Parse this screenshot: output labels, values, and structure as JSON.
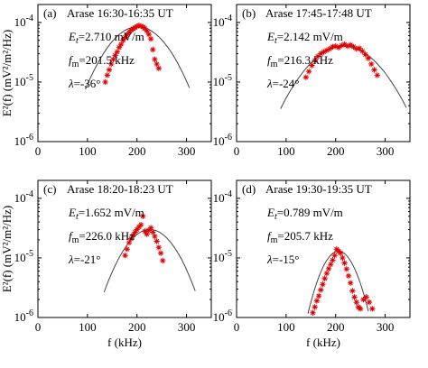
{
  "chart_data": [
    {
      "type": "scatter",
      "panel_label": "(a)",
      "title": "Arase  16:30-16:35 UT",
      "Et": "2.710 mV/m",
      "fm": "201.5 kHz",
      "lambda": "-36°",
      "xlim": [
        0,
        350
      ],
      "ylim": [
        1e-06,
        0.0002
      ],
      "yscale": "log",
      "xticks": [
        0,
        100,
        200,
        300
      ],
      "yticks": [
        1e-06,
        1e-05,
        0.0001
      ],
      "fit": {
        "peak": 8.5e-05,
        "fm": 201.5,
        "sigma": 48
      },
      "x": [
        136,
        140,
        144,
        148,
        152,
        156,
        160,
        164,
        168,
        172,
        176,
        180,
        184,
        188,
        192,
        196,
        200,
        204,
        208,
        212,
        216,
        220,
        224,
        228,
        232,
        236,
        240,
        244
      ],
      "y": [
        1e-05,
        1.3e-05,
        1.6e-05,
        2e-05,
        2.4e-05,
        2.8e-05,
        3.2e-05,
        3.8e-05,
        4.3e-05,
        5e-05,
        5.6e-05,
        6.2e-05,
        6.8e-05,
        7.4e-05,
        7.8e-05,
        8.2e-05,
        8.6e-05,
        8.9e-05,
        8.7e-05,
        8.4e-05,
        7.9e-05,
        7.2e-05,
        6.3e-05,
        5.3e-05,
        3.5e-05,
        2.4e-05,
        2e-05,
        1.7e-05
      ]
    },
    {
      "type": "scatter",
      "panel_label": "(b)",
      "title": "Arase  17:45-17:48 UT",
      "Et": "2.142 mV/m",
      "fm": "216.3 kHz",
      "lambda": "-24°",
      "xlim": [
        0,
        350
      ],
      "ylim": [
        1e-06,
        0.0002
      ],
      "yscale": "log",
      "xticks": [
        0,
        100,
        200,
        300
      ],
      "yticks": [
        1e-06,
        1e-05,
        0.0001
      ],
      "fit": {
        "peak": 4e-05,
        "fm": 216.3,
        "sigma": 58
      },
      "x": [
        140,
        146,
        152,
        158,
        164,
        170,
        176,
        182,
        188,
        194,
        200,
        206,
        212,
        218,
        224,
        230,
        236,
        242,
        248,
        254,
        260,
        266,
        272,
        278,
        284
      ],
      "y": [
        1.2e-05,
        1.5e-05,
        1.9e-05,
        2.3e-05,
        2.7e-05,
        3e-05,
        3.2e-05,
        3.4e-05,
        3.6e-05,
        3.9e-05,
        4e-05,
        3.8e-05,
        4.1e-05,
        4.3e-05,
        4e-05,
        4.2e-05,
        3.9e-05,
        3.6e-05,
        3.7e-05,
        3.3e-05,
        2.9e-05,
        2.5e-05,
        2e-05,
        1.6e-05,
        1.3e-05
      ]
    },
    {
      "type": "scatter",
      "panel_label": "(c)",
      "title": "Arase  18:20-18:23 UT",
      "Et": "1.652 mV/m",
      "fm": "226.0 kHz",
      "lambda": "-21°",
      "xlim": [
        0,
        350
      ],
      "ylim": [
        1e-06,
        0.0002
      ],
      "yscale": "log",
      "xticks": [
        0,
        100,
        200,
        300
      ],
      "yticks": [
        1e-06,
        1e-05,
        0.0001
      ],
      "fit": {
        "peak": 3e-05,
        "fm": 226.0,
        "sigma": 42
      },
      "x": [
        176,
        180,
        184,
        188,
        192,
        196,
        200,
        204,
        208,
        212,
        216,
        220,
        224,
        228,
        232,
        236,
        240,
        244,
        248,
        252
      ],
      "y": [
        1.1e-05,
        1.4e-05,
        1.8e-05,
        2.1e-05,
        2.4e-05,
        2.7e-05,
        3e-05,
        3.3e-05,
        3.6e-05,
        5e-05,
        2.8e-05,
        2.5e-05,
        2.9e-05,
        3.2e-05,
        2.7e-05,
        2.3e-05,
        1.9e-05,
        1.5e-05,
        1.2e-05,
        9e-06
      ]
    },
    {
      "type": "scatter",
      "panel_label": "(d)",
      "title": "Arase  19:30-19:35 UT",
      "Et": "0.789 mV/m",
      "fm": "205.7 kHz",
      "lambda": "-15°",
      "xlim": [
        0,
        350
      ],
      "ylim": [
        1e-06,
        0.0002
      ],
      "yscale": "log",
      "xticks": [
        0,
        100,
        200,
        300
      ],
      "yticks": [
        1e-06,
        1e-05,
        0.0001
      ],
      "fit": {
        "peak": 1.3e-05,
        "fm": 205.7,
        "sigma": 28
      },
      "x": [
        154,
        158,
        162,
        166,
        170,
        174,
        178,
        182,
        186,
        190,
        194,
        198,
        202,
        206,
        210,
        214,
        218,
        222,
        226,
        230,
        234,
        238,
        242,
        246,
        250,
        256,
        262,
        268,
        274
      ],
      "y": [
        1.2e-06,
        1.5e-06,
        1.9e-06,
        2.3e-06,
        2.9e-06,
        3.6e-06,
        4.5e-06,
        5.5e-06,
        6.6e-06,
        7.8e-06,
        9.2e-06,
        1.1e-05,
        1.4e-05,
        1.3e-05,
        1.2e-05,
        1e-05,
        8.2e-06,
        6.5e-06,
        5e-06,
        3.8e-06,
        2.8e-06,
        2.2e-06,
        1.8e-06,
        1.5e-06,
        1.4e-06,
        2e-06,
        2.2e-06,
        1.8e-06,
        1.4e-06
      ]
    }
  ],
  "y_axis_label": "E²(f)  (mV²/m²/Hz)",
  "x_axis_label": "f (kHz)",
  "labels": {
    "et_prefix": "E",
    "et_sub": "t",
    "fm_prefix": "f",
    "fm_sub": "m",
    "lambda_prefix": "λ"
  }
}
